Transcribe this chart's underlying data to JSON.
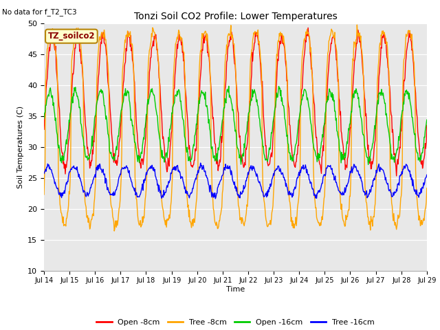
{
  "title": "Tonzi Soil CO2 Profile: Lower Temperatures",
  "top_left_text": "No data for f_T2_TC3",
  "legend_box_text": "TZ_soilco2",
  "xlabel": "Time",
  "ylabel": "Soil Temperatures (C)",
  "ylim": [
    10,
    50
  ],
  "n_days": 15,
  "x_tick_labels": [
    "Jul 14",
    "Jul 15",
    "Jul 16",
    "Jul 17",
    "Jul 18",
    "Jul 19",
    "Jul 20",
    "Jul 21",
    "Jul 22",
    "Jul 23",
    "Jul 24",
    "Jul 25",
    "Jul 26",
    "Jul 27",
    "Jul 28",
    "Jul 29"
  ],
  "plot_bg": "#e8e8e8",
  "fig_bg": "#ffffff",
  "series": [
    {
      "label": "Open -8cm",
      "color": "#ff0000",
      "amplitude": 10.5,
      "mean": 37.5,
      "phase": -0.45,
      "period_mod": 1.0,
      "sharpness": 1.0,
      "noise": 0.6
    },
    {
      "label": "Tree -8cm",
      "color": "#ffa500",
      "amplitude": 15.5,
      "mean": 33.0,
      "phase": -0.3,
      "period_mod": 1.0,
      "sharpness": 3.0,
      "noise": 0.5
    },
    {
      "label": "Open -16cm",
      "color": "#00cc00",
      "amplitude": 5.5,
      "mean": 33.5,
      "phase": 0.2,
      "period_mod": 1.0,
      "sharpness": 1.0,
      "noise": 0.4
    },
    {
      "label": "Tree -16cm",
      "color": "#0000ff",
      "amplitude": 2.3,
      "mean": 24.5,
      "phase": 0.5,
      "period_mod": 2.0,
      "sharpness": 1.0,
      "noise": 0.3
    }
  ]
}
